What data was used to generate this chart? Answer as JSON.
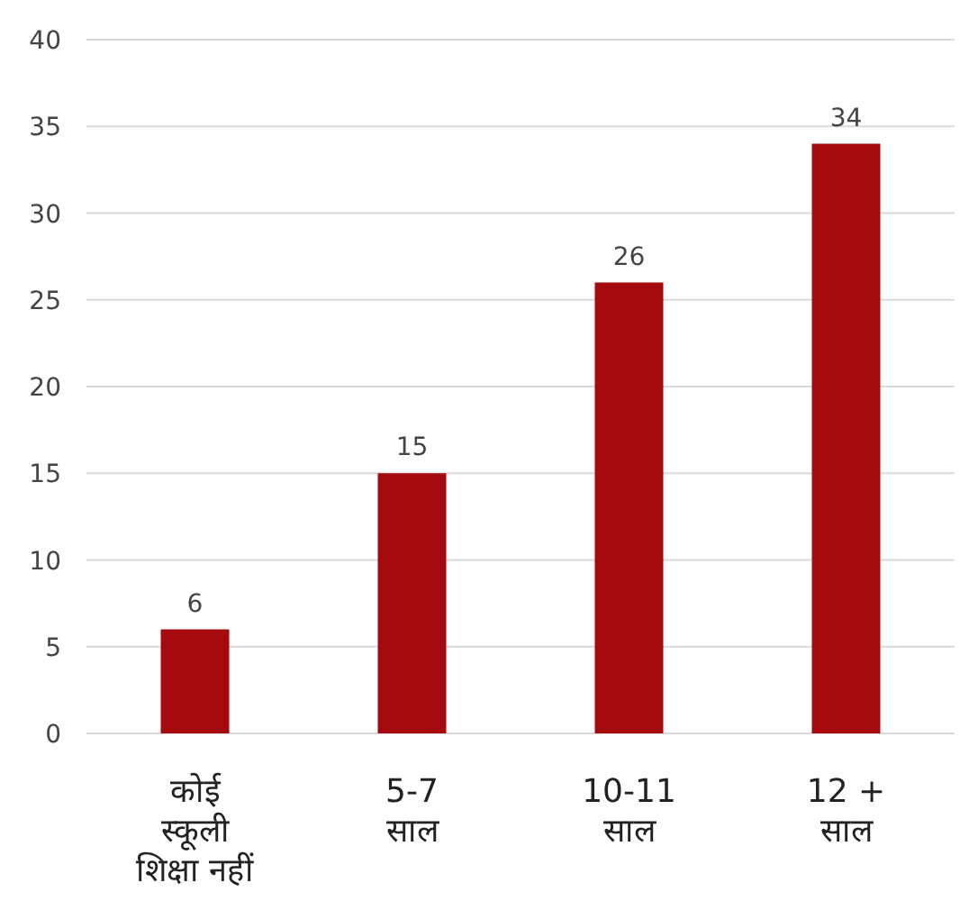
{
  "chart_data": {
    "type": "bar",
    "categories": [
      "कोई\nस्कूली\nशिक्षा  नहीं",
      "5-7\nसाल",
      "10-11\nसाल",
      "12 +\nसाल"
    ],
    "values": [
      6,
      15,
      26,
      34
    ],
    "color": "#a50a0e",
    "ylim": [
      0,
      40
    ],
    "yticks": [
      0,
      5,
      10,
      15,
      20,
      25,
      30,
      35,
      40
    ],
    "grid": "y",
    "data_labels": true
  }
}
